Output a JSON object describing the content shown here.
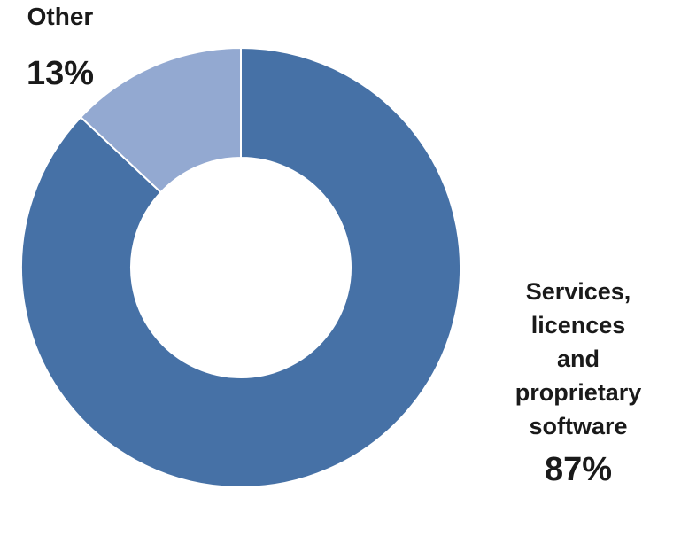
{
  "chart_data": {
    "type": "pie",
    "variant": "donut",
    "legend": "none",
    "slices": [
      {
        "label": "Services, licences and proprietary software",
        "label_lines": [
          "Services,",
          "licences",
          "and",
          "proprietary",
          "software"
        ],
        "value": 87,
        "value_label": "87%",
        "color": "#4671a6"
      },
      {
        "label": "Other",
        "label_lines": [
          "Other"
        ],
        "value": 13,
        "value_label": "13%",
        "color": "#93a9d1"
      }
    ]
  }
}
